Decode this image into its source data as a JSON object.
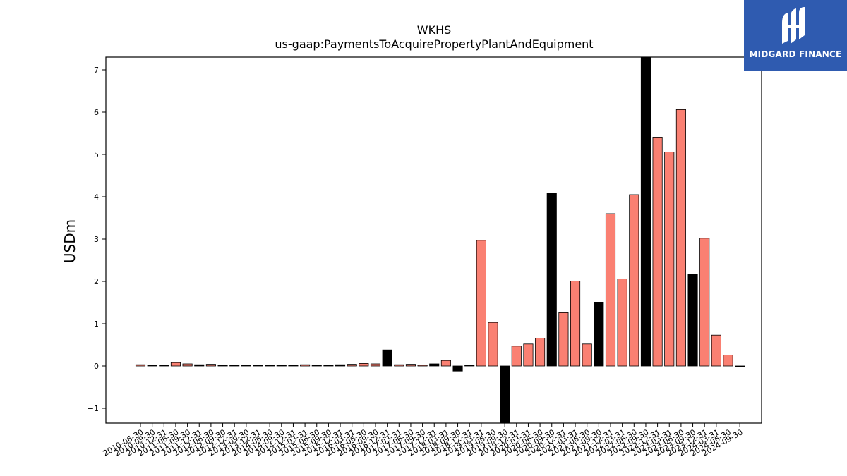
{
  "chart_data": {
    "type": "bar",
    "title": "WKHS",
    "subtitle": "us-gaap:PaymentsToAcquirePropertyPlantAndEquipment",
    "ylabel": "USDm",
    "xlabel": "",
    "ylim": [
      -1.35,
      7.3
    ],
    "yticks": [
      -1,
      0,
      1,
      2,
      3,
      4,
      5,
      6,
      7
    ],
    "ytick_labels": [
      "−1",
      "0",
      "1",
      "2",
      "3",
      "4",
      "5",
      "6",
      "7"
    ],
    "grid": false,
    "categories": [
      "2010-06-30",
      "2010-09-30",
      "2010-12-31",
      "2011-06-30",
      "2011-09-30",
      "2011-12-31",
      "2012-06-30",
      "2012-09-30",
      "2012-12-31",
      "2013-09-30",
      "2013-12-31",
      "2014-06-30",
      "2014-09-30",
      "2014-12-31",
      "2015-03-31",
      "2015-06-30",
      "2015-09-30",
      "2015-12-31",
      "2016-03-31",
      "2016-06-30",
      "2016-09-30",
      "2016-12-31",
      "2017-03-31",
      "2017-06-30",
      "2017-09-30",
      "2017-12-31",
      "2018-03-31",
      "2018-09-30",
      "2018-12-31",
      "2019-03-31",
      "2019-06-30",
      "2019-09-30",
      "2019-12-31",
      "2020-03-31",
      "2020-06-30",
      "2020-09-30",
      "2020-12-31",
      "2021-03-31",
      "2021-06-30",
      "2021-09-30",
      "2021-12-31",
      "2022-03-31",
      "2022-06-30",
      "2022-09-30",
      "2022-12-31",
      "2023-03-31",
      "2023-06-30",
      "2023-09-30",
      "2023-12-31",
      "2024-03-31",
      "2024-06-30",
      "2024-09-30"
    ],
    "values": [
      0.03,
      0.02,
      0.01,
      0.08,
      0.05,
      0.03,
      0.04,
      0.01,
      0.01,
      0.01,
      0.01,
      0.01,
      0.01,
      0.02,
      0.03,
      0.02,
      0.01,
      0.03,
      0.04,
      0.06,
      0.05,
      0.38,
      0.03,
      0.04,
      0.02,
      0.05,
      0.13,
      -0.12,
      0.01,
      2.97,
      1.03,
      -1.35,
      0.47,
      0.52,
      0.66,
      4.08,
      1.26,
      2.01,
      0.52,
      1.51,
      3.6,
      2.06,
      4.05,
      7.3,
      5.41,
      5.06,
      6.06,
      2.16,
      3.02,
      0.73,
      0.26,
      0.0
    ],
    "bar_colors": [
      "salmon",
      "black",
      "salmon",
      "salmon",
      "salmon",
      "black",
      "salmon",
      "salmon",
      "salmon",
      "salmon",
      "salmon",
      "salmon",
      "salmon",
      "black",
      "salmon",
      "black",
      "salmon",
      "black",
      "salmon",
      "salmon",
      "salmon",
      "black",
      "salmon",
      "salmon",
      "salmon",
      "black",
      "salmon",
      "black",
      "salmon",
      "salmon",
      "salmon",
      "black",
      "salmon",
      "salmon",
      "salmon",
      "black",
      "salmon",
      "salmon",
      "salmon",
      "black",
      "salmon",
      "salmon",
      "salmon",
      "black",
      "salmon",
      "salmon",
      "salmon",
      "black",
      "salmon",
      "salmon",
      "salmon",
      "salmon"
    ],
    "colors": {
      "salmon": "#fa8072",
      "black": "#000000",
      "edge": "#000000"
    }
  },
  "logo": {
    "text": "MIDGARD FINANCE",
    "background": "#2f5bb0",
    "icon": "midgard-logo-icon"
  }
}
